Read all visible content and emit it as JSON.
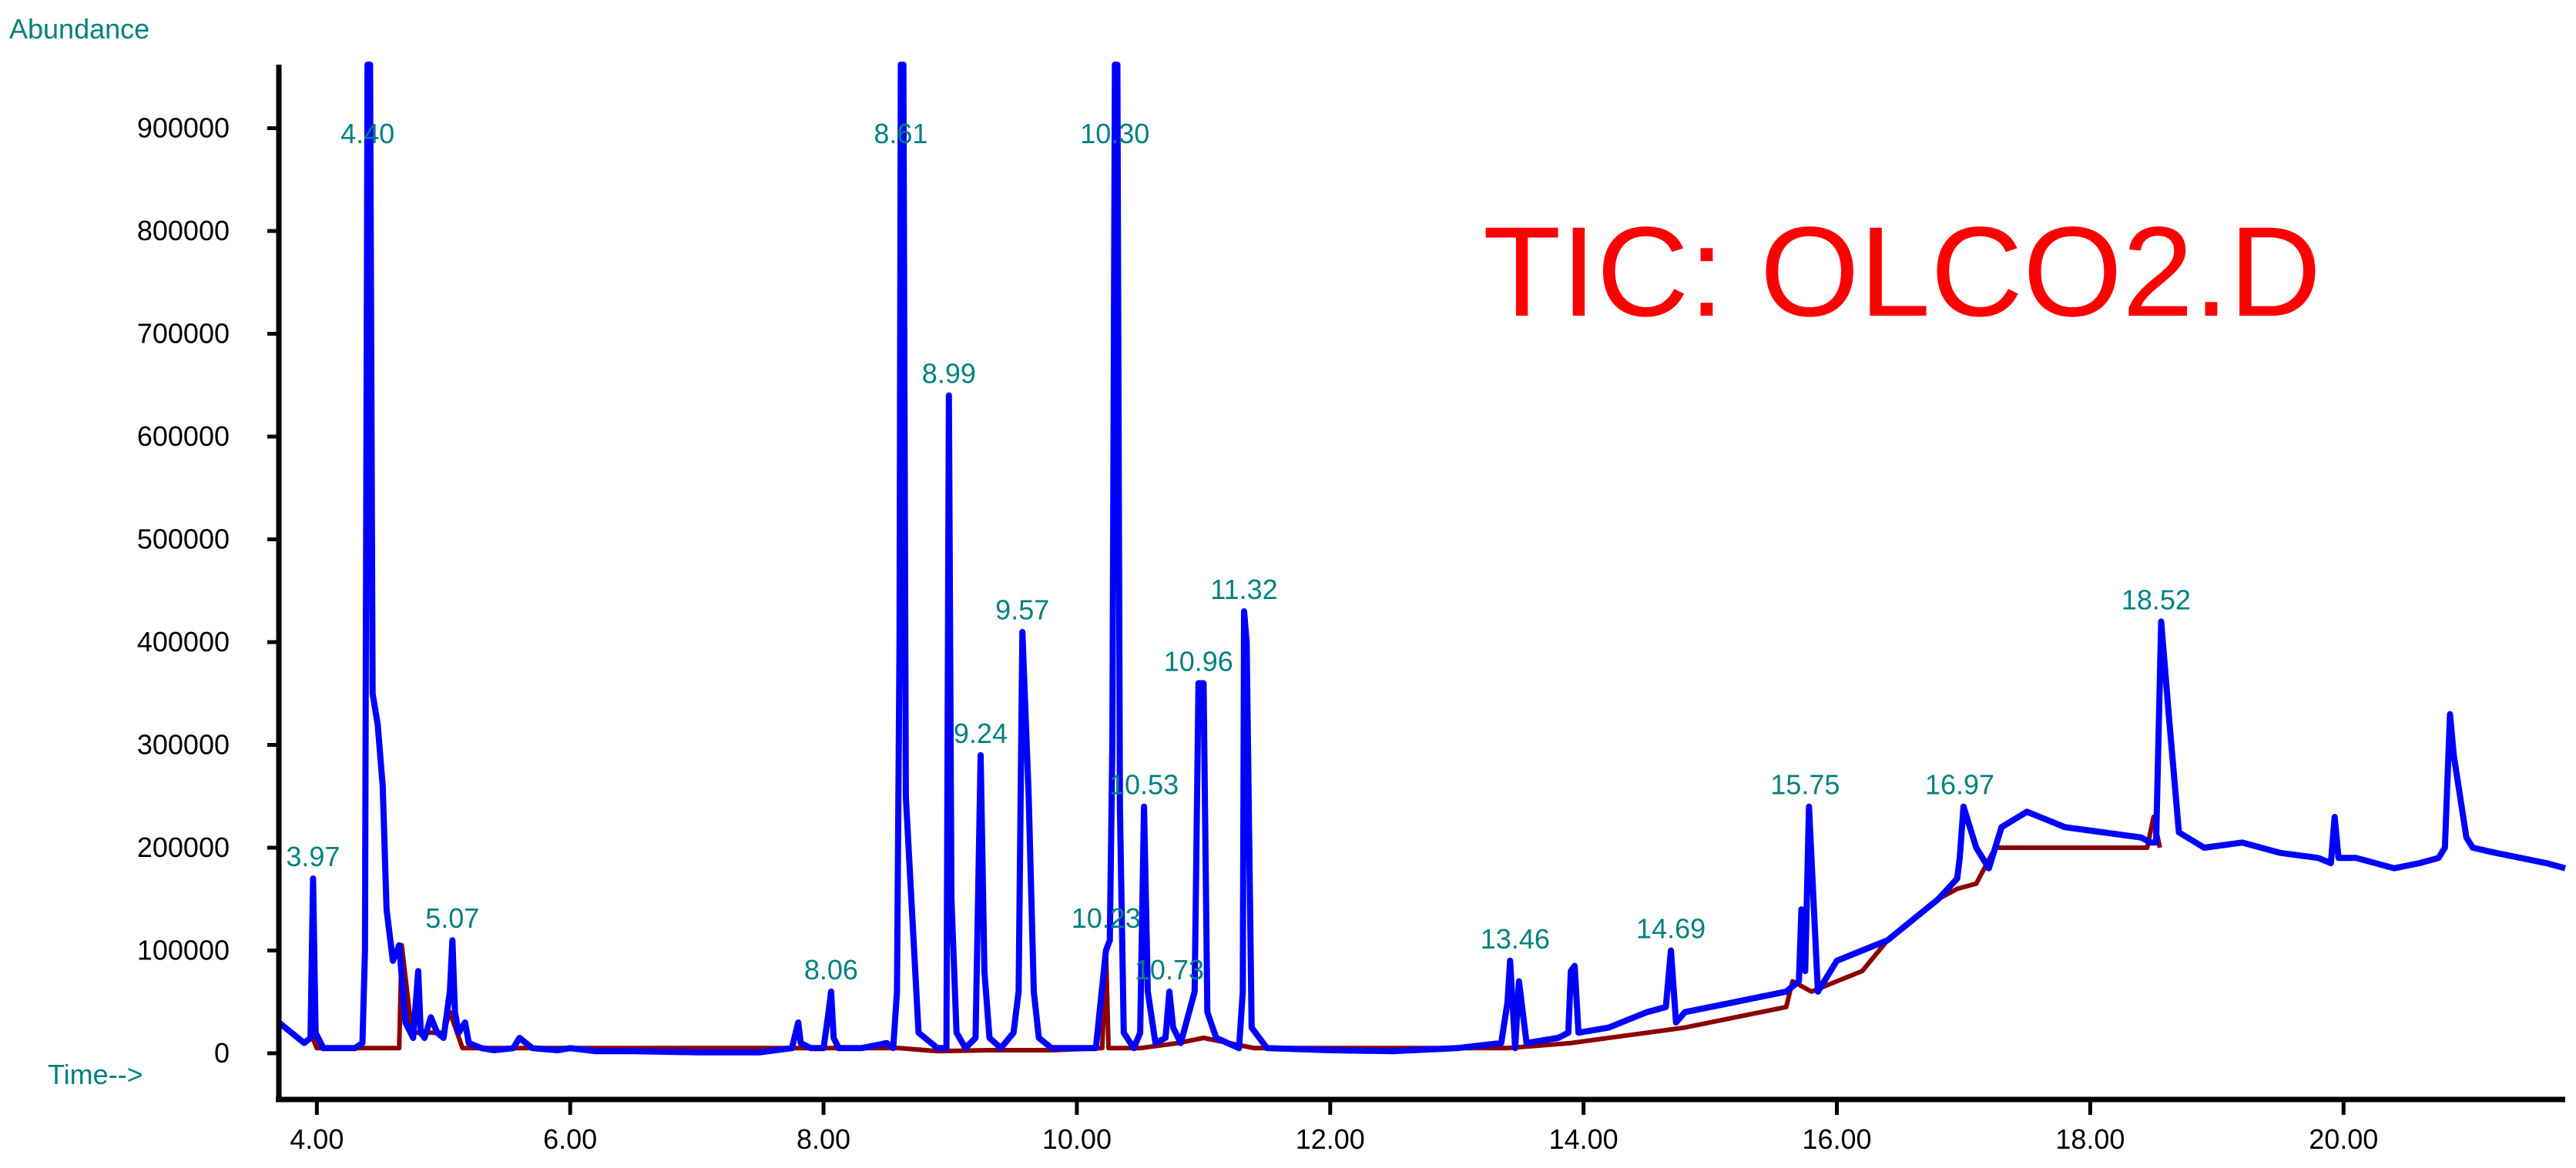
{
  "chart_data": {
    "type": "line",
    "title": "TIC: OLCO2.D",
    "ylabel": "Abundance",
    "xlabel": "Time-->",
    "xlim": [
      3.7,
      21.75
    ],
    "ylim": [
      0,
      1000000
    ],
    "x_ticks": [
      "4.00",
      "6.00",
      "8.00",
      "10.00",
      "12.00",
      "14.00",
      "16.00",
      "18.00",
      "20.00"
    ],
    "y_ticks": [
      "0",
      "100000",
      "200000",
      "300000",
      "400000",
      "500000",
      "600000",
      "700000",
      "800000",
      "900000"
    ],
    "peak_labels": [
      {
        "text": "3.97",
        "x": 3.97,
        "y": 170000
      },
      {
        "text": "4.40",
        "x": 4.4,
        "y": 1000000
      },
      {
        "text": "5.07",
        "x": 5.07,
        "y": 110000
      },
      {
        "text": "8.06",
        "x": 8.06,
        "y": 60000
      },
      {
        "text": "8.61",
        "x": 8.61,
        "y": 1000000
      },
      {
        "text": "8.99",
        "x": 8.99,
        "y": 640000
      },
      {
        "text": "9.24",
        "x": 9.24,
        "y": 290000
      },
      {
        "text": "9.57",
        "x": 9.57,
        "y": 410000
      },
      {
        "text": "10.23",
        "x": 10.23,
        "y": 110000
      },
      {
        "text": "10.30",
        "x": 10.3,
        "y": 1000000
      },
      {
        "text": "10.53",
        "x": 10.53,
        "y": 240000
      },
      {
        "text": "10.73",
        "x": 10.73,
        "y": 60000
      },
      {
        "text": "10.96",
        "x": 10.96,
        "y": 360000
      },
      {
        "text": "11.32",
        "x": 11.32,
        "y": 430000
      },
      {
        "text": "13.46",
        "x": 13.46,
        "y": 90000
      },
      {
        "text": "14.69",
        "x": 14.69,
        "y": 100000
      },
      {
        "text": "15.75",
        "x": 15.75,
        "y": 240000
      },
      {
        "text": "16.97",
        "x": 16.97,
        "y": 240000
      },
      {
        "text": "18.52",
        "x": 18.52,
        "y": 420000
      }
    ],
    "series": [
      {
        "color": "#0000ff",
        "x": [
          3.7,
          3.8,
          3.9,
          3.95,
          3.97,
          3.99,
          4.05,
          4.15,
          4.3,
          4.36,
          4.38,
          4.4,
          4.42,
          4.44,
          4.48,
          4.52,
          4.55,
          4.6,
          4.65,
          4.7,
          4.76,
          4.8,
          4.82,
          4.85,
          4.9,
          4.95,
          5.0,
          5.05,
          5.07,
          5.09,
          5.12,
          5.17,
          5.2,
          5.3,
          5.4,
          5.55,
          5.6,
          5.7,
          5.9,
          6.0,
          6.2,
          6.5,
          7.0,
          7.5,
          7.75,
          7.8,
          7.82,
          7.9,
          8.0,
          8.04,
          8.06,
          8.08,
          8.12,
          8.3,
          8.5,
          8.55,
          8.58,
          8.6,
          8.61,
          8.63,
          8.65,
          8.75,
          8.9,
          8.97,
          8.99,
          9.01,
          9.05,
          9.12,
          9.2,
          9.24,
          9.27,
          9.31,
          9.4,
          9.5,
          9.54,
          9.57,
          9.62,
          9.66,
          9.7,
          9.8,
          10.0,
          10.15,
          10.23,
          10.26,
          10.28,
          10.3,
          10.32,
          10.34,
          10.37,
          10.45,
          10.5,
          10.53,
          10.56,
          10.62,
          10.7,
          10.73,
          10.76,
          10.82,
          10.93,
          10.96,
          11.0,
          11.03,
          11.1,
          11.28,
          11.31,
          11.32,
          11.34,
          11.38,
          11.5,
          12.0,
          12.5,
          13.0,
          13.35,
          13.4,
          13.42,
          13.46,
          13.49,
          13.55,
          13.8,
          13.88,
          13.9,
          13.93,
          13.96,
          14.2,
          14.5,
          14.65,
          14.69,
          14.73,
          14.8,
          15.0,
          15.2,
          15.4,
          15.6,
          15.7,
          15.72,
          15.75,
          15.78,
          15.85,
          16.0,
          16.2,
          16.4,
          16.6,
          16.8,
          16.95,
          16.97,
          17.0,
          17.1,
          17.2,
          17.3,
          17.5,
          17.8,
          18.1,
          18.4,
          18.48,
          18.52,
          18.56,
          18.62,
          18.7,
          18.9,
          19.2,
          19.5,
          19.8,
          19.9,
          19.93,
          19.96,
          20.1,
          20.4,
          20.6,
          20.75,
          20.8,
          20.84,
          20.87,
          20.92,
          20.97,
          21.02,
          21.2,
          21.4,
          21.6,
          21.75
        ],
        "y": [
          30000,
          20000,
          10000,
          15000,
          170000,
          20000,
          5000,
          5000,
          5000,
          10000,
          100000,
          1000000,
          1000000,
          350000,
          320000,
          260000,
          140000,
          90000,
          105000,
          30000,
          15000,
          80000,
          20000,
          15000,
          35000,
          20000,
          15000,
          60000,
          110000,
          40000,
          20000,
          30000,
          10000,
          5000,
          3000,
          5000,
          15000,
          5000,
          3000,
          5000,
          2000,
          2000,
          1000,
          1000,
          5000,
          30000,
          10000,
          5000,
          5000,
          40000,
          60000,
          15000,
          5000,
          5000,
          10000,
          5000,
          60000,
          400000,
          1000000,
          1000000,
          250000,
          20000,
          5000,
          5000,
          640000,
          150000,
          20000,
          5000,
          15000,
          290000,
          80000,
          15000,
          5000,
          20000,
          60000,
          410000,
          250000,
          60000,
          15000,
          5000,
          5000,
          5000,
          100000,
          110000,
          300000,
          1000000,
          1000000,
          240000,
          20000,
          5000,
          20000,
          240000,
          60000,
          10000,
          15000,
          60000,
          25000,
          10000,
          60000,
          360000,
          360000,
          40000,
          15000,
          5000,
          60000,
          430000,
          400000,
          25000,
          5000,
          3000,
          2000,
          5000,
          10000,
          50000,
          90000,
          5000,
          70000,
          10000,
          15000,
          20000,
          80000,
          85000,
          20000,
          25000,
          40000,
          45000,
          100000,
          30000,
          40000,
          45000,
          50000,
          55000,
          60000,
          70000,
          140000,
          80000,
          240000,
          60000,
          90000,
          100000,
          110000,
          130000,
          150000,
          170000,
          190000,
          240000,
          200000,
          180000,
          220000,
          235000,
          220000,
          215000,
          210000,
          205000,
          205000,
          420000,
          330000,
          215000,
          200000,
          205000,
          195000,
          190000,
          185000,
          230000,
          190000,
          190000,
          180000,
          185000,
          190000,
          200000,
          330000,
          290000,
          250000,
          210000,
          200000,
          195000,
          190000,
          185000,
          180000
        ]
      },
      {
        "color": "#8b0000",
        "x": [
          3.95,
          4.0,
          4.36,
          4.38,
          4.6,
          4.65,
          4.67,
          4.75,
          5.0,
          5.05,
          5.15,
          5.2,
          5.5,
          7.8,
          8.1,
          8.6,
          8.9,
          9.3,
          9.8,
          10.2,
          10.23,
          10.25,
          10.5,
          10.8,
          11.0,
          11.4,
          13.4,
          13.9,
          14.5,
          14.8,
          15.6,
          15.65,
          15.8,
          16.0,
          16.2,
          16.4,
          16.8,
          16.95,
          17.1,
          17.25,
          18.45,
          18.5,
          18.55
        ],
        "y": [
          20000,
          5000,
          5000,
          5000,
          5000,
          5000,
          105000,
          20000,
          20000,
          40000,
          5000,
          5000,
          5000,
          5000,
          5000,
          5000,
          2000,
          3000,
          3000,
          5000,
          100000,
          5000,
          5000,
          10000,
          15000,
          5000,
          5000,
          10000,
          20000,
          25000,
          45000,
          70000,
          60000,
          70000,
          80000,
          110000,
          150000,
          160000,
          165000,
          200000,
          200000,
          230000,
          200000
        ]
      }
    ]
  }
}
